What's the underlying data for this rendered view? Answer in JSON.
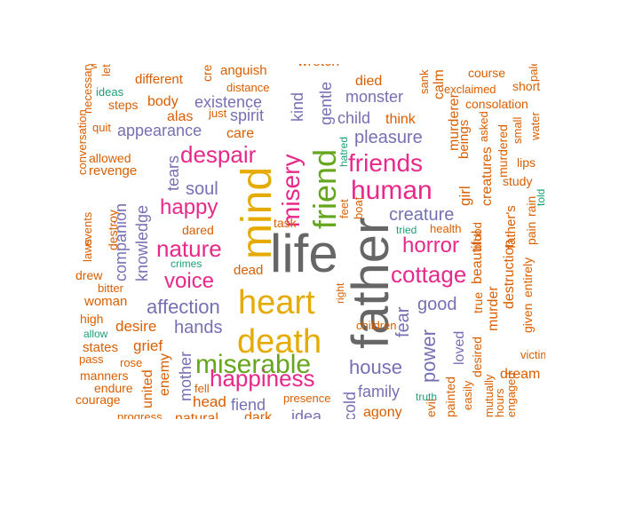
{
  "palette": {
    "gray": "#666666",
    "orange": "#d95f02",
    "purple": "#7570b3",
    "magenta": "#e7298a",
    "green": "#66a61e",
    "gold": "#e6ab02",
    "teal": "#1b9e77"
  },
  "words": [
    {
      "t": "father",
      "c": "gray"
    },
    {
      "t": "life",
      "c": "gray"
    },
    {
      "t": "mind",
      "c": "gold"
    },
    {
      "t": "heart",
      "c": "gold"
    },
    {
      "t": "death",
      "c": "gold"
    },
    {
      "t": "miserable",
      "c": "green"
    },
    {
      "t": "friend",
      "c": "green"
    },
    {
      "t": "misery",
      "c": "magenta"
    },
    {
      "t": "human",
      "c": "magenta"
    },
    {
      "t": "friends",
      "c": "magenta"
    },
    {
      "t": "despair",
      "c": "magenta"
    },
    {
      "t": "happiness",
      "c": "magenta"
    },
    {
      "t": "nature",
      "c": "magenta"
    },
    {
      "t": "happy",
      "c": "magenta"
    },
    {
      "t": "voice",
      "c": "magenta"
    },
    {
      "t": "cottage",
      "c": "magenta"
    },
    {
      "t": "horror",
      "c": "magenta"
    },
    {
      "t": "creature",
      "c": "purple"
    },
    {
      "t": "pleasure",
      "c": "purple"
    },
    {
      "t": "affection",
      "c": "purple"
    },
    {
      "t": "house",
      "c": "purple"
    },
    {
      "t": "power",
      "c": "purple"
    },
    {
      "t": "fear",
      "c": "purple"
    },
    {
      "t": "good",
      "c": "purple"
    },
    {
      "t": "soul",
      "c": "purple"
    },
    {
      "t": "hands",
      "c": "purple"
    },
    {
      "t": "existence",
      "c": "purple"
    },
    {
      "t": "monster",
      "c": "purple"
    },
    {
      "t": "child",
      "c": "purple"
    },
    {
      "t": "spirit",
      "c": "purple"
    },
    {
      "t": "appearance",
      "c": "purple"
    },
    {
      "t": "kind",
      "c": "purple"
    },
    {
      "t": "gentle",
      "c": "purple"
    },
    {
      "t": "knowledge",
      "c": "purple"
    },
    {
      "t": "companion",
      "c": "purple"
    },
    {
      "t": "tears",
      "c": "purple"
    },
    {
      "t": "family",
      "c": "purple"
    },
    {
      "t": "mother",
      "c": "purple"
    },
    {
      "t": "fiend",
      "c": "purple"
    },
    {
      "t": "idea",
      "c": "purple"
    },
    {
      "t": "cold",
      "c": "purple"
    },
    {
      "t": "loved",
      "c": "purple"
    },
    {
      "t": "think",
      "c": "orange"
    },
    {
      "t": "died",
      "c": "orange"
    },
    {
      "t": "body",
      "c": "orange"
    },
    {
      "t": "alas",
      "c": "orange"
    },
    {
      "t": "care",
      "c": "orange"
    },
    {
      "t": "different",
      "c": "orange"
    },
    {
      "t": "anguish",
      "c": "orange"
    },
    {
      "t": "distance",
      "c": "orange"
    },
    {
      "t": "steps",
      "c": "orange"
    },
    {
      "t": "just",
      "c": "orange"
    },
    {
      "t": "quit",
      "c": "orange"
    },
    {
      "t": "allowed",
      "c": "orange"
    },
    {
      "t": "revenge",
      "c": "orange"
    },
    {
      "t": "destroy",
      "c": "orange"
    },
    {
      "t": "drew",
      "c": "orange"
    },
    {
      "t": "bitter",
      "c": "orange"
    },
    {
      "t": "woman",
      "c": "orange"
    },
    {
      "t": "high",
      "c": "orange"
    },
    {
      "t": "desire",
      "c": "orange"
    },
    {
      "t": "grief",
      "c": "orange"
    },
    {
      "t": "states",
      "c": "orange"
    },
    {
      "t": "pass",
      "c": "orange"
    },
    {
      "t": "rose",
      "c": "orange"
    },
    {
      "t": "manners",
      "c": "orange"
    },
    {
      "t": "endure",
      "c": "orange"
    },
    {
      "t": "courage",
      "c": "orange"
    },
    {
      "t": "progress",
      "c": "orange"
    },
    {
      "t": "natural",
      "c": "orange"
    },
    {
      "t": "head",
      "c": "orange"
    },
    {
      "t": "fell",
      "c": "orange"
    },
    {
      "t": "united",
      "c": "orange"
    },
    {
      "t": "enemy",
      "c": "orange"
    },
    {
      "t": "dared",
      "c": "orange"
    },
    {
      "t": "dead",
      "c": "orange"
    },
    {
      "t": "task",
      "c": "orange"
    },
    {
      "t": "presence",
      "c": "orange"
    },
    {
      "t": "dark",
      "c": "orange"
    },
    {
      "t": "agony",
      "c": "orange"
    },
    {
      "t": "children",
      "c": "orange"
    },
    {
      "t": "health",
      "c": "orange"
    },
    {
      "t": "murderer",
      "c": "orange"
    },
    {
      "t": "beings",
      "c": "orange"
    },
    {
      "t": "girl",
      "c": "orange"
    },
    {
      "t": "creatures",
      "c": "orange"
    },
    {
      "t": "murdered",
      "c": "orange"
    },
    {
      "t": "father's",
      "c": "orange"
    },
    {
      "t": "study",
      "c": "orange"
    },
    {
      "t": "lips",
      "c": "orange"
    },
    {
      "t": "pain",
      "c": "orange"
    },
    {
      "t": "rain",
      "c": "orange"
    },
    {
      "t": "entirely",
      "c": "orange"
    },
    {
      "t": "given",
      "c": "orange"
    },
    {
      "t": "victim",
      "c": "orange"
    },
    {
      "t": "dream",
      "c": "orange"
    },
    {
      "t": "destruction",
      "c": "orange"
    },
    {
      "t": "murder",
      "c": "orange"
    },
    {
      "t": "beautiful",
      "c": "orange"
    },
    {
      "t": "true",
      "c": "orange"
    },
    {
      "t": "desired",
      "c": "orange"
    },
    {
      "t": "blood",
      "c": "orange"
    },
    {
      "t": "easily",
      "c": "orange"
    },
    {
      "t": "painted",
      "c": "orange"
    },
    {
      "t": "evil",
      "c": "orange"
    },
    {
      "t": "hours",
      "c": "orange"
    },
    {
      "t": "engaged",
      "c": "orange"
    },
    {
      "t": "mutually",
      "c": "orange"
    },
    {
      "t": "feet",
      "c": "orange"
    },
    {
      "t": "boat",
      "c": "orange"
    },
    {
      "t": "right",
      "c": "orange"
    },
    {
      "t": "sank",
      "c": "orange"
    },
    {
      "t": "calm",
      "c": "orange"
    },
    {
      "t": "exclaimed",
      "c": "orange"
    },
    {
      "t": "consolation",
      "c": "orange"
    },
    {
      "t": "short",
      "c": "orange"
    },
    {
      "t": "course",
      "c": "orange"
    },
    {
      "t": "asked",
      "c": "orange"
    },
    {
      "t": "small",
      "c": "orange"
    },
    {
      "t": "water",
      "c": "orange"
    },
    {
      "t": "pale",
      "c": "orange"
    },
    {
      "t": "conversation",
      "c": "orange"
    },
    {
      "t": "necessary",
      "c": "orange"
    },
    {
      "t": "events",
      "c": "orange"
    },
    {
      "t": "laws",
      "c": "orange"
    },
    {
      "t": "let",
      "c": "orange"
    },
    {
      "t": "wretch",
      "c": "orange"
    },
    {
      "t": "creation",
      "c": "orange"
    },
    {
      "t": "bound",
      "c": "orange"
    },
    {
      "t": "weeping",
      "c": "orange"
    },
    {
      "t": "ideas",
      "c": "teal"
    },
    {
      "t": "crimes",
      "c": "teal"
    },
    {
      "t": "hatred",
      "c": "teal"
    },
    {
      "t": "tried",
      "c": "teal"
    },
    {
      "t": "allow",
      "c": "teal"
    },
    {
      "t": "truth",
      "c": "teal"
    },
    {
      "t": "told",
      "c": "teal"
    }
  ]
}
